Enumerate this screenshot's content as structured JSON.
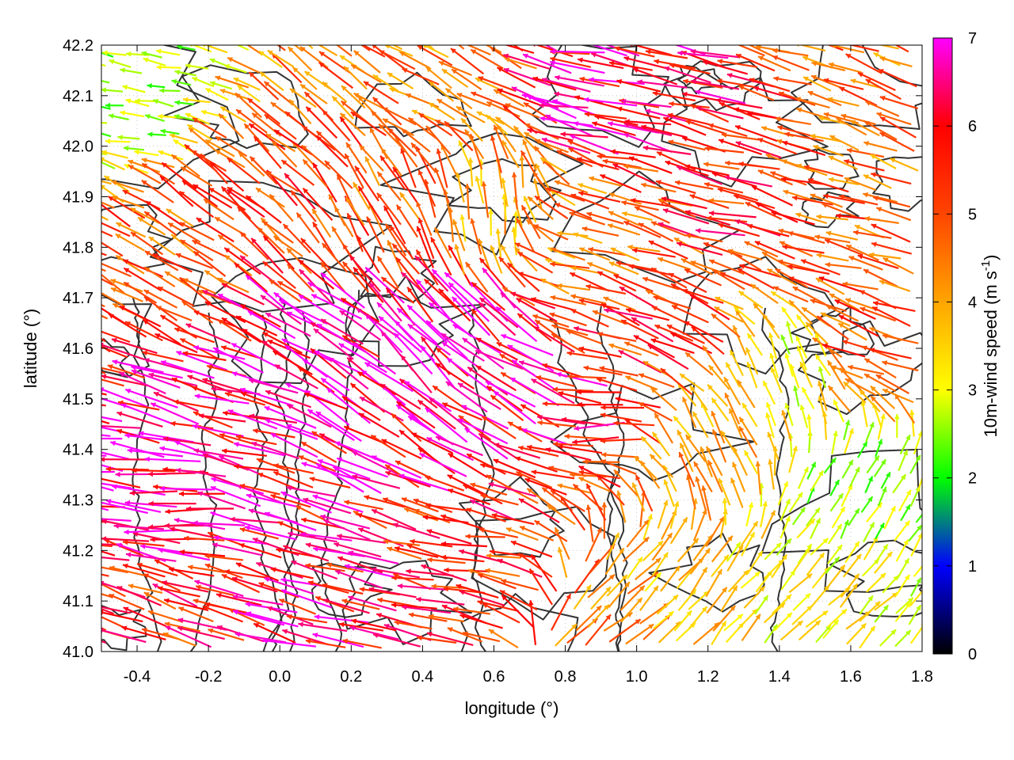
{
  "chart_data": {
    "type": "vector-field",
    "xlabel": "longitude (°)",
    "ylabel": "latitude (°)",
    "colorbar_label_main": "10m-wind speed (m s",
    "colorbar_label_sup": "-1",
    "colorbar_label_close": ")",
    "xlim": [
      -0.5,
      1.8
    ],
    "ylim": [
      41.0,
      42.2
    ],
    "xticks": [
      -0.4,
      -0.2,
      0.0,
      0.2,
      0.4,
      0.6,
      0.8,
      1.0,
      1.2,
      1.4,
      1.6,
      1.8
    ],
    "xtick_labels": [
      "-0.4",
      "-0.2",
      "0.0",
      "0.2",
      "0.4",
      "0.6",
      "0.8",
      "1.0",
      "1.2",
      "1.4",
      "1.6",
      "1.8"
    ],
    "yticks": [
      41.0,
      41.1,
      41.2,
      41.3,
      41.4,
      41.5,
      41.6,
      41.7,
      41.8,
      41.9,
      42.0,
      42.1,
      42.2
    ],
    "ytick_labels": [
      "41.0",
      "41.1",
      "41.2",
      "41.3",
      "41.4",
      "41.5",
      "41.6",
      "41.7",
      "41.8",
      "41.9",
      "42.0",
      "42.1",
      "42.2"
    ],
    "colorbar": {
      "min": 0,
      "max": 7,
      "ticks": [
        0,
        1,
        2,
        3,
        4,
        5,
        6,
        7
      ],
      "tick_labels": [
        "0",
        "1",
        "2",
        "3",
        "4",
        "5",
        "6",
        "7"
      ],
      "palette": [
        "#000000",
        "#0000ff",
        "#00ff00",
        "#ffff00",
        "#ffa500",
        "#ff4500",
        "#ff0000",
        "#ff00ff"
      ]
    },
    "grid": true,
    "contour_color": "#333333",
    "wind_regions": [
      {
        "lon": -0.3,
        "lat": 41.3,
        "speed": 7.0,
        "dir_deg": 175
      },
      {
        "lon": -0.1,
        "lat": 41.45,
        "speed": 6.5,
        "dir_deg": 165
      },
      {
        "lon": 0.2,
        "lat": 41.55,
        "speed": 6.8,
        "dir_deg": 150
      },
      {
        "lon": 0.45,
        "lat": 41.6,
        "speed": 7.0,
        "dir_deg": 135
      },
      {
        "lon": 0.7,
        "lat": 41.5,
        "speed": 6.5,
        "dir_deg": 150
      },
      {
        "lon": 0.3,
        "lat": 41.85,
        "speed": 5.0,
        "dir_deg": 120
      },
      {
        "lon": 0.0,
        "lat": 41.9,
        "speed": 5.2,
        "dir_deg": 140
      },
      {
        "lon": -0.3,
        "lat": 41.75,
        "speed": 5.0,
        "dir_deg": 150
      },
      {
        "lon": 0.6,
        "lat": 41.85,
        "speed": 4.0,
        "dir_deg": 95
      },
      {
        "lon": 0.9,
        "lat": 41.8,
        "speed": 4.5,
        "dir_deg": 165
      },
      {
        "lon": 1.3,
        "lat": 41.9,
        "speed": 5.5,
        "dir_deg": 165
      },
      {
        "lon": 1.6,
        "lat": 41.8,
        "speed": 5.0,
        "dir_deg": 165
      },
      {
        "lon": 1.0,
        "lat": 42.1,
        "speed": 6.5,
        "dir_deg": 170
      },
      {
        "lon": 0.5,
        "lat": 42.1,
        "speed": 4.5,
        "dir_deg": 150
      },
      {
        "lon": -0.4,
        "lat": 42.1,
        "speed": 2.5,
        "dir_deg": 170
      },
      {
        "lon": 1.1,
        "lat": 41.65,
        "speed": 5.5,
        "dir_deg": 160
      },
      {
        "lon": 1.45,
        "lat": 41.55,
        "speed": 3.0,
        "dir_deg": 110
      },
      {
        "lon": 1.6,
        "lat": 41.3,
        "speed": 2.5,
        "dir_deg": 60
      },
      {
        "lon": 1.5,
        "lat": 41.1,
        "speed": 3.2,
        "dir_deg": 45
      },
      {
        "lon": 1.1,
        "lat": 41.1,
        "speed": 3.5,
        "dir_deg": 50
      },
      {
        "lon": 0.95,
        "lat": 41.05,
        "speed": 4.5,
        "dir_deg": 40
      },
      {
        "lon": 0.6,
        "lat": 41.15,
        "speed": 5.5,
        "dir_deg": 170
      },
      {
        "lon": 0.2,
        "lat": 41.1,
        "speed": 6.0,
        "dir_deg": 165
      },
      {
        "lon": -0.3,
        "lat": 41.1,
        "speed": 5.5,
        "dir_deg": 160
      },
      {
        "lon": 1.2,
        "lat": 41.4,
        "speed": 4.0,
        "dir_deg": 120
      },
      {
        "lon": 0.95,
        "lat": 41.45,
        "speed": 5.8,
        "dir_deg": 178
      },
      {
        "lon": 1.75,
        "lat": 42.0,
        "speed": 4.5,
        "dir_deg": 160
      },
      {
        "lon": 1.7,
        "lat": 41.6,
        "speed": 5.0,
        "dir_deg": 160
      }
    ]
  }
}
